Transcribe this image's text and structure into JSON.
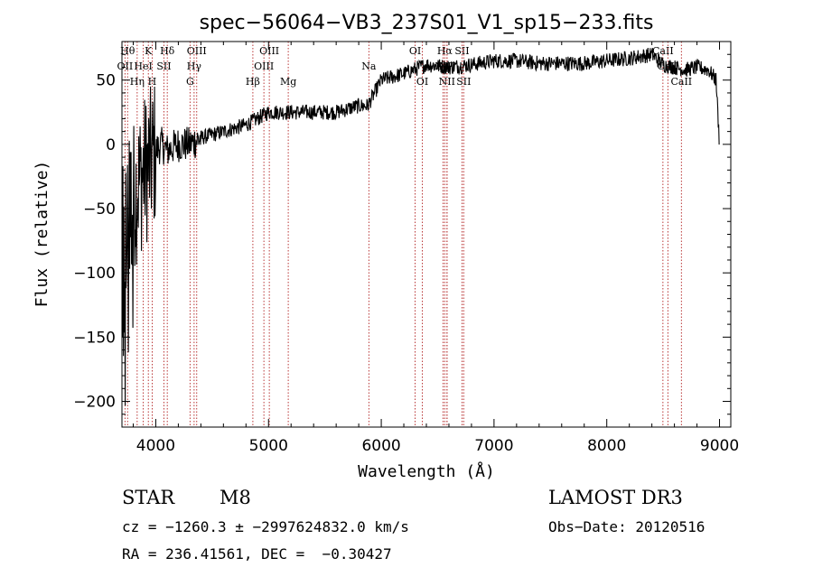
{
  "chart_data": {
    "type": "line",
    "title": "spec−56064−VB3_237S01_V1_sp15−233.fits",
    "xlabel": "Wavelength (Å)",
    "ylabel": "Flux (relative)",
    "xlim": [
      3700,
      9100
    ],
    "ylim": [
      -220,
      80
    ],
    "xticks": [
      4000,
      5000,
      6000,
      7000,
      8000,
      9000
    ],
    "xtick_labels": [
      "4000",
      "5000",
      "6000",
      "7000",
      "8000",
      "9000"
    ],
    "yticks": [
      50,
      0,
      -50,
      -100,
      -150,
      -200
    ],
    "ytick_labels": [
      "50",
      "0",
      "−50",
      "−100",
      "−150",
      "−200"
    ],
    "spectrum_anchors": {
      "x": [
        3700,
        3750,
        3800,
        3850,
        3900,
        3950,
        4000,
        4050,
        4100,
        4200,
        4300,
        4400,
        4600,
        4800,
        5000,
        5200,
        5400,
        5600,
        5800,
        5880,
        6000,
        6200,
        6400,
        6600,
        6800,
        7000,
        7200,
        7400,
        7600,
        7800,
        8000,
        8200,
        8400,
        8500,
        8600,
        8700,
        8800,
        8900,
        8970,
        9000
      ],
      "y": [
        -80,
        -60,
        -40,
        -30,
        -20,
        -15,
        -5,
        0,
        -5,
        0,
        0,
        5,
        10,
        15,
        25,
        25,
        25,
        25,
        30,
        30,
        50,
        55,
        62,
        60,
        62,
        65,
        65,
        63,
        63,
        63,
        65,
        67,
        70,
        62,
        60,
        58,
        60,
        58,
        50,
        0
      ]
    },
    "noise_amplitude": [
      {
        "until": 4000,
        "amp": 60
      },
      {
        "until": 4400,
        "amp": 14
      },
      {
        "until": 9100,
        "amp": 6
      }
    ],
    "spectral_lines": [
      {
        "label": "Hθ",
        "x": 3750,
        "row": 0
      },
      {
        "label": "K",
        "x": 3934,
        "row": 0
      },
      {
        "label": "Hδ",
        "x": 4102,
        "row": 0
      },
      {
        "label": "OIII",
        "x": 4363,
        "row": 0
      },
      {
        "label": "OIII",
        "x": 5007,
        "row": 0
      },
      {
        "label": "OI",
        "x": 6300,
        "row": 0
      },
      {
        "label": "Hα",
        "x": 6563,
        "row": 0
      },
      {
        "label": "SII",
        "x": 6716,
        "row": 0
      },
      {
        "label": "CaII",
        "x": 8498,
        "row": 0
      },
      {
        "label": "OII",
        "x": 3727,
        "row": 1
      },
      {
        "label": "HeI",
        "x": 3889,
        "row": 1
      },
      {
        "label": "SII",
        "x": 4072,
        "row": 1
      },
      {
        "label": "Hγ",
        "x": 4340,
        "row": 1
      },
      {
        "label": "OIII",
        "x": 4959,
        "row": 1
      },
      {
        "label": "Na",
        "x": 5890,
        "row": 1
      },
      {
        "label": "NII",
        "x": 6548,
        "row": 1
      },
      {
        "label": "NII",
        "x": 6583,
        "row": 1
      },
      {
        "label": "CaII",
        "x": 8542,
        "row": 1
      },
      {
        "label": "Hη",
        "x": 3835,
        "row": 2
      },
      {
        "label": "H",
        "x": 3968,
        "row": 2
      },
      {
        "label": "G",
        "x": 4304,
        "row": 2
      },
      {
        "label": "Hβ",
        "x": 4861,
        "row": 2
      },
      {
        "label": "Mg",
        "x": 5175,
        "row": 2
      },
      {
        "label": "OI",
        "x": 6364,
        "row": 2
      },
      {
        "label": "NII",
        "x": 6583,
        "row": 2
      },
      {
        "label": "SII",
        "x": 6731,
        "row": 2
      },
      {
        "label": "CaII",
        "x": 8662,
        "row": 2
      }
    ]
  },
  "info": {
    "object_class": "STAR",
    "subclass": "M8",
    "survey": "LAMOST DR3",
    "cz_line": "cz = −1260.3 ± −2997624832.0 km/s",
    "obs_date_line": "Obs−Date: 20120516",
    "radec_line": "RA = 236.41561, DEC =  −0.30427"
  },
  "colors": {
    "spectrum": "#000000",
    "line_markers": "#b22222",
    "frame": "#000000"
  }
}
